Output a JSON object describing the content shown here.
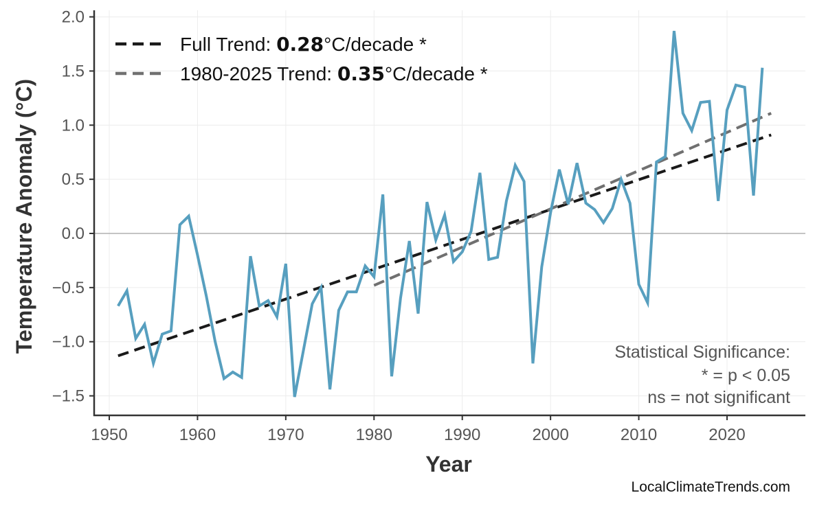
{
  "chart_data": {
    "type": "line",
    "xlabel": "Year",
    "ylabel": "Temperature Anomaly (°C)",
    "xlim": [
      1948.5,
      2028.5
    ],
    "ylim": [
      -1.68,
      2.05
    ],
    "xticks": [
      1950,
      1960,
      1970,
      1980,
      1990,
      2000,
      2010,
      2020
    ],
    "yticks": [
      -1.5,
      -1.0,
      -0.5,
      0.0,
      0.5,
      1.0,
      1.5,
      2.0
    ],
    "ytick_labels": [
      "−1.5",
      "−1.0",
      "−0.5",
      "0.0",
      "0.5",
      "1.0",
      "1.5",
      "2.0"
    ],
    "grid": true,
    "legend_placement": "top-left",
    "colors": {
      "series": "#579fbf",
      "full_trend": "#1a1a1a",
      "recent_trend": "#707070",
      "zero_line": "#b0b0b0",
      "grid": "#ececec"
    },
    "x": [
      1951,
      1952,
      1953,
      1954,
      1955,
      1956,
      1957,
      1958,
      1959,
      1960,
      1961,
      1962,
      1963,
      1964,
      1965,
      1966,
      1967,
      1968,
      1969,
      1970,
      1971,
      1972,
      1973,
      1974,
      1975,
      1976,
      1977,
      1978,
      1979,
      1980,
      1981,
      1982,
      1983,
      1984,
      1985,
      1986,
      1987,
      1988,
      1989,
      1990,
      1991,
      1992,
      1993,
      1994,
      1995,
      1996,
      1997,
      1998,
      1999,
      2000,
      2001,
      2002,
      2003,
      2004,
      2005,
      2006,
      2007,
      2008,
      2009,
      2010,
      2011,
      2012,
      2013,
      2014,
      2015,
      2016,
      2017,
      2018,
      2019,
      2020,
      2021,
      2022,
      2023,
      2024
    ],
    "series": [
      {
        "values": [
          -0.67,
          -0.53,
          -0.97,
          -0.84,
          -1.2,
          -0.93,
          -0.9,
          0.08,
          0.16,
          -0.2,
          -0.58,
          -1.0,
          -1.34,
          -1.28,
          -1.33,
          -0.21,
          -0.67,
          -0.62,
          -0.77,
          -0.28,
          -1.51,
          -1.08,
          -0.65,
          -0.5,
          -1.44,
          -0.71,
          -0.54,
          -0.54,
          -0.3,
          -0.4,
          0.36,
          -1.32,
          -0.6,
          -0.07,
          -0.74,
          0.29,
          -0.06,
          0.17,
          -0.26,
          -0.17,
          0.02,
          0.56,
          -0.24,
          -0.22,
          0.3,
          0.63,
          0.48,
          -1.2,
          -0.31,
          0.19,
          0.59,
          0.27,
          0.65,
          0.28,
          0.22,
          0.1,
          0.23,
          0.5,
          0.28,
          -0.47,
          -0.64,
          0.66,
          0.71,
          1.87,
          1.11,
          0.95,
          1.21,
          1.22,
          0.3,
          1.14,
          1.37,
          1.35,
          0.35,
          1.53
        ]
      }
    ],
    "trends": [
      {
        "name_prefix": "Full Trend: ",
        "value": "0.28",
        "name_suffix": "°C/decade *",
        "x": [
          1951,
          2025
        ],
        "y": [
          -1.13,
          0.91
        ]
      },
      {
        "name_prefix": "1980-2025 Trend: ",
        "value": "0.35",
        "name_suffix": "°C/decade *",
        "x": [
          1980,
          2025
        ],
        "y": [
          -0.48,
          1.11
        ]
      }
    ],
    "annotation": [
      "Statistical Significance:",
      "* = p < 0.05",
      "ns = not significant"
    ],
    "watermark": "LocalClimateTrends.com"
  }
}
